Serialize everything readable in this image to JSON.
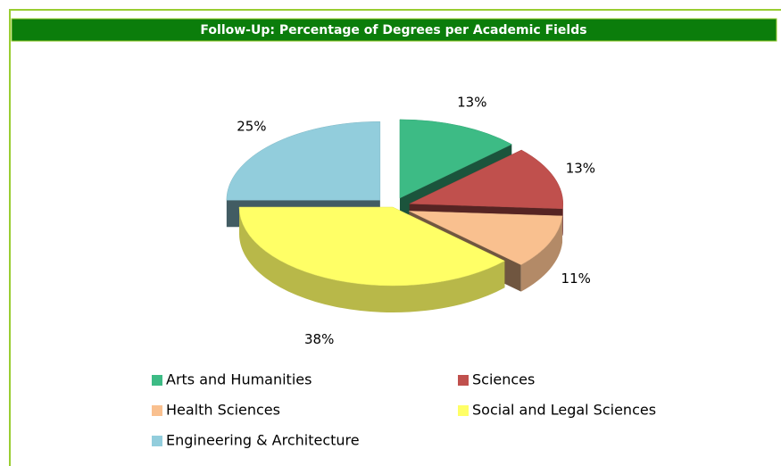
{
  "chart_data": {
    "type": "pie3d",
    "title": "Follow-Up: Percentage of Degrees per Academic Fields",
    "categories": [
      "Arts and Humanities",
      "Sciences",
      "Health Sciences",
      "Social and Legal Sciences",
      "Engineering & Architecture"
    ],
    "values": [
      13,
      13,
      11,
      38,
      25
    ],
    "value_labels": [
      "13%",
      "13%",
      "11%",
      "38%",
      "25%"
    ],
    "colors": [
      "#3dbb85",
      "#c0504d",
      "#f9c08f",
      "#ffff66",
      "#92cddc"
    ],
    "legend": "bottom"
  }
}
